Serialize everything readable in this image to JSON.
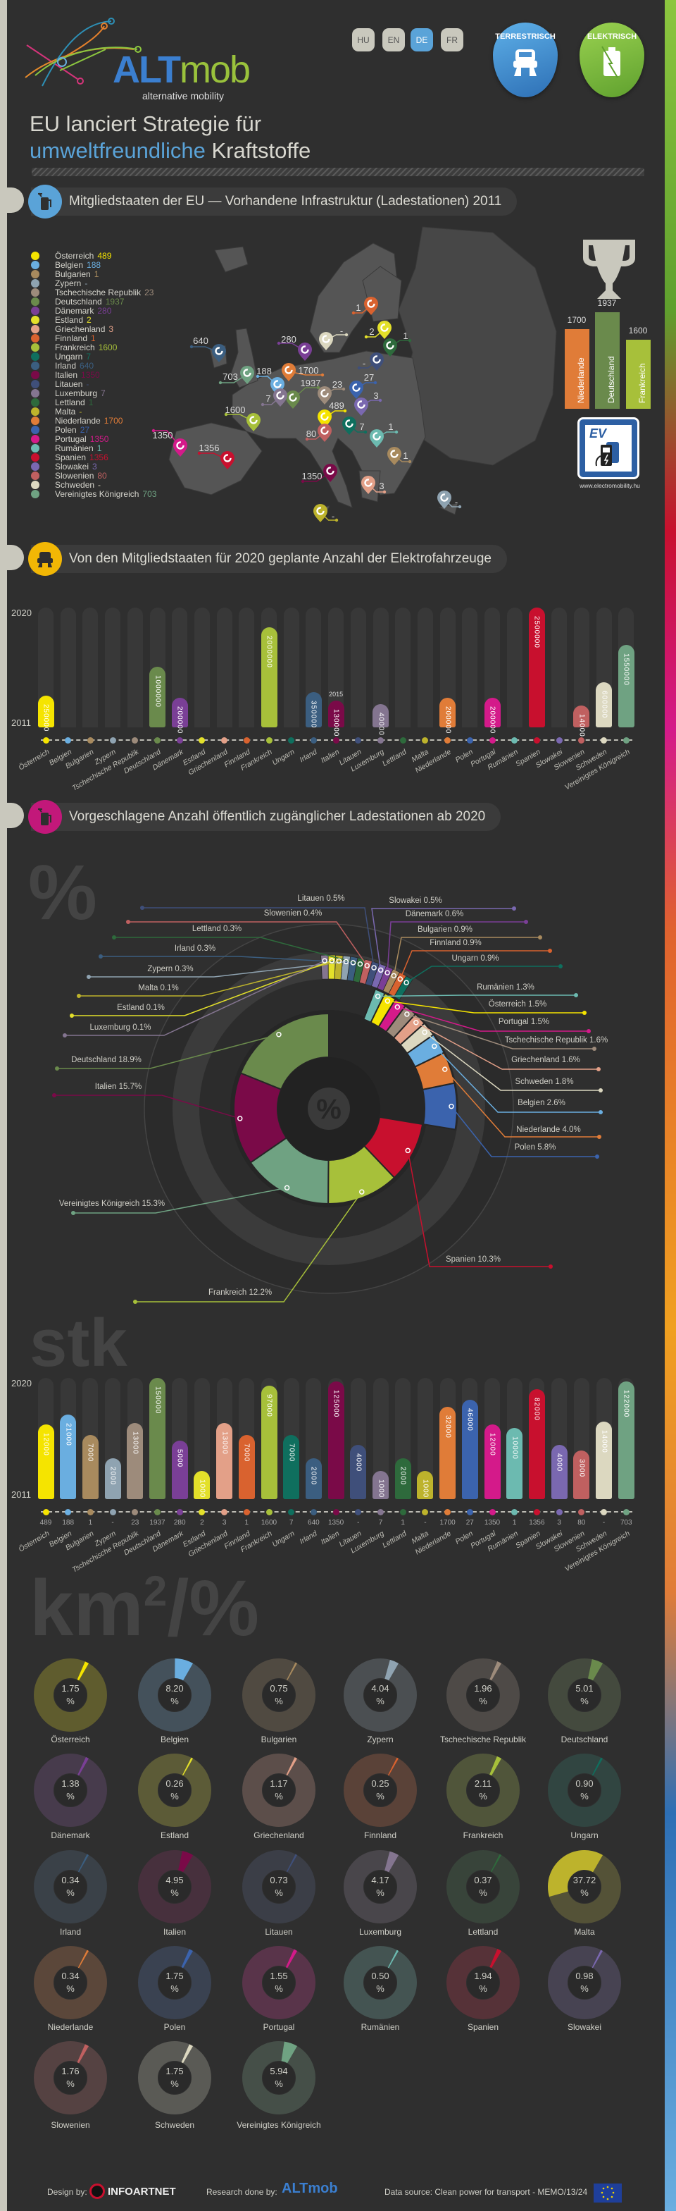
{
  "header": {
    "logo_alt": "ALT",
    "logo_mob": "mob",
    "logo_tagline": "alternative mobility",
    "languages": [
      "HU",
      "EN",
      "DE",
      "FR"
    ],
    "active_language": "DE",
    "badges": [
      "TERRESTRISCH",
      "ELEKTRISCH"
    ],
    "title_line1": "EU lanciert Strategie für",
    "title_highlight": "umweltfreundliche",
    "title_rest": "Kraftstoffe"
  },
  "countries": [
    {
      "name": "Österreich",
      "color": "#f5e400"
    },
    {
      "name": "Belgien",
      "color": "#6aaee0"
    },
    {
      "name": "Bulgarien",
      "color": "#a88a5e"
    },
    {
      "name": "Zypern",
      "color": "#8fa3b1"
    },
    {
      "name": "Tschechische Republik",
      "color": "#9d8b7b"
    },
    {
      "name": "Deutschland",
      "color": "#6a8a4c"
    },
    {
      "name": "Dänemark",
      "color": "#7a3f96"
    },
    {
      "name": "Estland",
      "color": "#e3e02a"
    },
    {
      "name": "Griechenland",
      "color": "#e3a088"
    },
    {
      "name": "Finnland",
      "color": "#d9622f"
    },
    {
      "name": "Frankreich",
      "color": "#a7c03a"
    },
    {
      "name": "Ungarn",
      "color": "#0f6f5e"
    },
    {
      "name": "Irland",
      "color": "#3b5e80"
    },
    {
      "name": "Italien",
      "color": "#7a0a48"
    },
    {
      "name": "Litauen",
      "color": "#3f4f7a"
    },
    {
      "name": "Luxemburg",
      "color": "#847590"
    },
    {
      "name": "Lettland",
      "color": "#2e6a3c"
    },
    {
      "name": "Malta",
      "color": "#bdb32c"
    },
    {
      "name": "Niederlande",
      "color": "#e07c38"
    },
    {
      "name": "Polen",
      "color": "#3b63ad"
    },
    {
      "name": "Portugal",
      "color": "#d41a8a"
    },
    {
      "name": "Rumänien",
      "color": "#6cbab0"
    },
    {
      "name": "Spanien",
      "color": "#c8102e"
    },
    {
      "name": "Slowakei",
      "color": "#7a68b0"
    },
    {
      "name": "Slowenien",
      "color": "#c06060"
    },
    {
      "name": "Schweden",
      "color": "#dcd8c0"
    },
    {
      "name": "Vereinigtes Königreich",
      "color": "#6fa282"
    }
  ],
  "section1": {
    "title": "Mitgliedstaaten der EU — Vorhandene Infrastruktur (Ladestationen) 2011",
    "icon": "ev-charger-icon",
    "icon_color": "#5aa3d8",
    "stations_2011": [
      "489",
      "188",
      "1",
      "-",
      "23",
      "1937",
      "280",
      "2",
      "3",
      "1",
      "1600",
      "7",
      "640",
      "1350",
      "-",
      "7",
      "1",
      "-",
      "1700",
      "27",
      "1350",
      "1",
      "1356",
      "3",
      "80",
      "-",
      "703"
    ],
    "podium": [
      {
        "name": "Niederlande",
        "value": "1700",
        "color": "#e07c38"
      },
      {
        "name": "Deutschland",
        "value": "1937",
        "color": "#6a8a4c"
      },
      {
        "name": "Frankreich",
        "value": "1600",
        "color": "#a7c03a"
      }
    ],
    "sign_text": "EV",
    "sign_url": "www.electromobility.hu"
  },
  "chart_data": [
    {
      "type": "bar",
      "title": "Von den Mitgliedstaaten für 2020 geplante Anzahl der Elektrofahrzeuge",
      "icon": "car-icon",
      "icon_color": "#f2b705",
      "y_labels": [
        "2020",
        "2011"
      ],
      "values": [
        250000,
        null,
        null,
        null,
        null,
        1000000,
        200000,
        null,
        null,
        null,
        2000000,
        null,
        350000,
        130000,
        null,
        40000,
        null,
        null,
        200000,
        null,
        200000,
        null,
        2500000,
        null,
        14000,
        600000,
        1550000
      ],
      "value_labels": [
        "250000",
        "",
        "",
        "",
        "",
        "1000000",
        "200000",
        "",
        "",
        "",
        "2000000",
        "",
        "350000",
        "130000",
        "",
        "40000",
        "",
        "",
        "200000",
        "",
        "200000",
        "",
        "2500000",
        "",
        "14000",
        "600000",
        "1550000"
      ],
      "annotations": {
        "13": "2015"
      }
    },
    {
      "type": "pie",
      "title": "Vorgeschlagene Anzahl öffentlich zugänglicher Ladestationen ab 2020",
      "icon": "ev-charger-icon",
      "icon_color": "#c2187a",
      "watermark": "%",
      "center_label": "%",
      "slices": [
        {
          "name": "Deutschland",
          "value": 18.9
        },
        {
          "name": "Italien",
          "value": 15.7
        },
        {
          "name": "Vereinigtes Königreich",
          "value": 15.3
        },
        {
          "name": "Frankreich",
          "value": 12.2
        },
        {
          "name": "Spanien",
          "value": 10.3
        },
        {
          "name": "Polen",
          "value": 5.8
        },
        {
          "name": "Niederlande",
          "value": 4.0
        },
        {
          "name": "Belgien",
          "value": 2.6
        },
        {
          "name": "Schweden",
          "value": 1.8
        },
        {
          "name": "Griechenland",
          "value": 1.6
        },
        {
          "name": "Tschechische Republik",
          "value": 1.6
        },
        {
          "name": "Portugal",
          "value": 1.5
        },
        {
          "name": "Österreich",
          "value": 1.5
        },
        {
          "name": "Rumänien",
          "value": 1.3
        },
        {
          "name": "Ungarn",
          "value": 0.9
        },
        {
          "name": "Finnland",
          "value": 0.9
        },
        {
          "name": "Bulgarien",
          "value": 0.9
        },
        {
          "name": "Dänemark",
          "value": 0.6
        },
        {
          "name": "Slowakei",
          "value": 0.5
        },
        {
          "name": "Litauen",
          "value": 0.5
        },
        {
          "name": "Slowenien",
          "value": 0.4
        },
        {
          "name": "Lettland",
          "value": 0.3
        },
        {
          "name": "Irland",
          "value": 0.3
        },
        {
          "name": "Zypern",
          "value": 0.3
        },
        {
          "name": "Malta",
          "value": 0.1
        },
        {
          "name": "Estland",
          "value": 0.1
        },
        {
          "name": "Luxemburg",
          "value": 0.1
        }
      ]
    },
    {
      "type": "bar",
      "title": "stk",
      "y_labels": [
        "2020",
        "2011"
      ],
      "values": [
        12000,
        21000,
        7000,
        2000,
        13000,
        150000,
        5000,
        1000,
        13000,
        7000,
        97000,
        7000,
        2000,
        125000,
        4000,
        1000,
        2000,
        1000,
        32000,
        46000,
        12000,
        10000,
        82000,
        4000,
        3000,
        14000,
        122000
      ],
      "value_labels": [
        "12000",
        "21000",
        "7000",
        "2000",
        "13000",
        "150000",
        "5000",
        "1000",
        "13000",
        "7000",
        "97000",
        "7000",
        "2000",
        "125000",
        "4000",
        "1000",
        "2000",
        "1000",
        "32000",
        "46000",
        "12000",
        "10000",
        "82000",
        "4000",
        "3000",
        "14000",
        "122000"
      ],
      "existing_2011": [
        "489",
        "188",
        "1",
        "-",
        "23",
        "1937",
        "280",
        "2",
        "3",
        "1",
        "1600",
        "7",
        "640",
        "1350",
        "-",
        "7",
        "1",
        "-",
        "1700",
        "27",
        "1350",
        "1",
        "1356",
        "3",
        "80",
        "-",
        "703"
      ]
    },
    {
      "type": "pie",
      "title": "km²/%",
      "unit": "%",
      "values": [
        "1.75",
        "8.20",
        "0.75",
        "4.04",
        "1.96",
        "5.01",
        "1.38",
        "0.26",
        "1.17",
        "0.25",
        "2.11",
        "0.90",
        "0.34",
        "4.95",
        "0.73",
        "4.17",
        "0.37",
        "37.72",
        "0.34",
        "1.75",
        "1.55",
        "0.50",
        "1.94",
        "0.98",
        "1.76",
        "1.75",
        "5.94"
      ]
    }
  ],
  "footer": {
    "design_by": "Design by:",
    "design_logo": "INFOARTNET",
    "research_by": "Research done by:",
    "research_logo": "ALTmob",
    "source": "Data source: Clean power for transport - MEMO/13/24"
  }
}
